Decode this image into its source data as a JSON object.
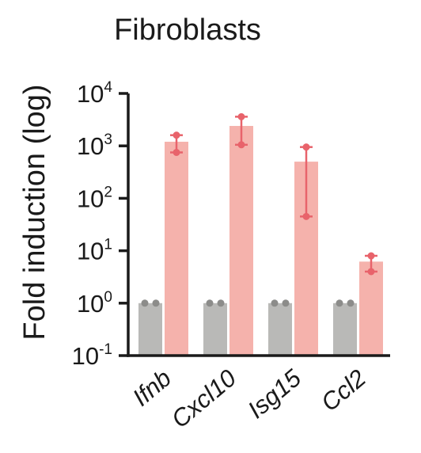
{
  "chart_data": {
    "type": "bar",
    "title": "Fibroblasts",
    "ylabel": "Fold induction (log)",
    "xlabel": "",
    "yscale": "log",
    "ylim": [
      0.1,
      10000
    ],
    "yticks": [
      {
        "value": 0.1,
        "base": "10",
        "exp": "-1"
      },
      {
        "value": 1,
        "base": "10",
        "exp": "0"
      },
      {
        "value": 10,
        "base": "10",
        "exp": "1"
      },
      {
        "value": 100,
        "base": "10",
        "exp": "2"
      },
      {
        "value": 1000,
        "base": "10",
        "exp": "3"
      },
      {
        "value": 10000,
        "base": "10",
        "exp": "4"
      }
    ],
    "categories": [
      "Ifnb",
      "Cxcl10",
      "Isg15",
      "Ccl2"
    ],
    "series": [
      {
        "color": "#b9b9b7",
        "point_color": "#8c8c8a",
        "values": [
          1,
          1,
          1,
          1
        ],
        "points": [
          [
            1,
            1
          ],
          [
            1,
            1
          ],
          [
            1,
            1
          ],
          [
            1,
            1
          ]
        ]
      },
      {
        "color": "#f5b2ac",
        "point_color": "#e8636b",
        "values": [
          1200,
          2400,
          500,
          6.2
        ],
        "points": [
          [
            1600,
            750
          ],
          [
            3600,
            1050
          ],
          [
            950,
            45
          ],
          [
            8,
            4
          ]
        ]
      }
    ]
  }
}
